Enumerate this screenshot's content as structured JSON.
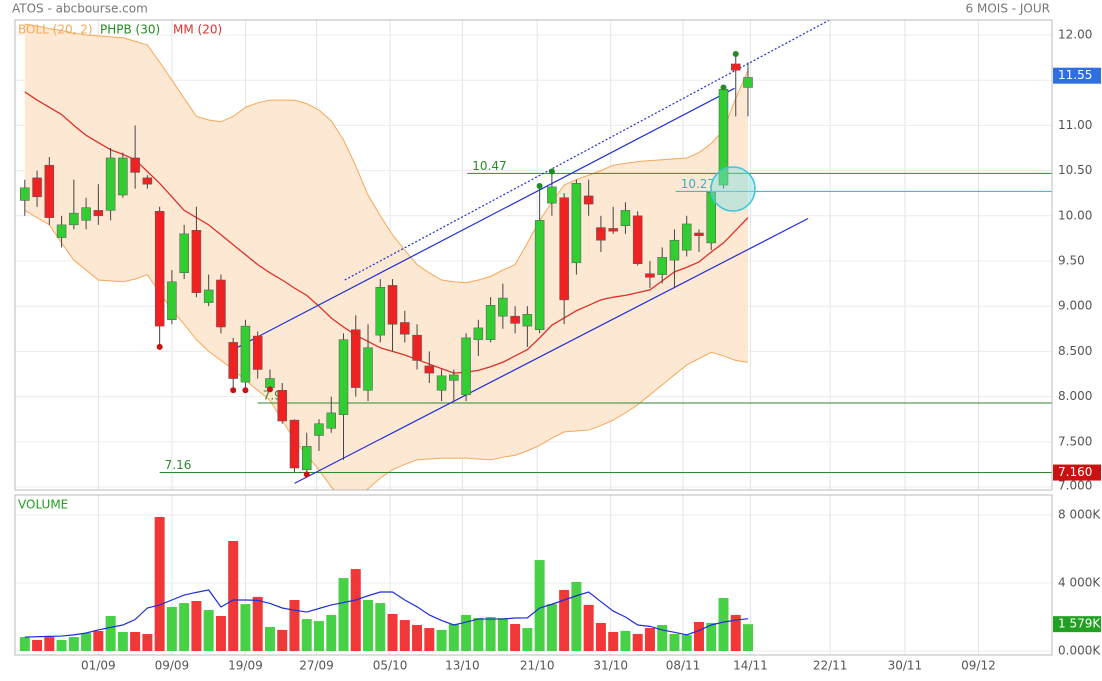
{
  "chart_data": [
    {
      "type": "candlestick",
      "title": "ATOS - abcbourse.com",
      "subtitle": "6 MOIS - JOUR",
      "up_color": "#33cc33",
      "down_color": "#ee2222",
      "open": [
        10.17,
        10.42,
        10.56,
        9.76,
        9.9,
        9.95,
        10.06,
        10.06,
        10.23,
        10.64,
        10.42,
        10.05,
        8.85,
        9.37,
        9.84,
        9.04,
        9.29,
        8.6,
        8.16,
        8.67,
        8.1,
        8.07,
        7.74,
        7.19,
        7.57,
        7.65,
        7.8,
        8.74,
        8.07,
        8.68,
        9.23,
        8.82,
        8.68,
        8.34,
        8.07,
        8.18,
        8.02,
        8.63,
        8.63,
        8.89,
        8.89,
        8.78,
        8.74,
        10.14,
        10.2,
        9.48,
        10.22,
        9.87,
        9.86,
        9.89,
        10.0,
        9.36,
        9.35,
        9.51,
        9.62,
        9.81,
        9.7,
        10.34,
        11.68,
        11.42
      ],
      "high": [
        10.4,
        10.5,
        10.65,
        10.0,
        10.4,
        10.2,
        10.35,
        10.75,
        10.7,
        11.0,
        10.45,
        10.1,
        9.4,
        9.9,
        10.1,
        9.35,
        9.35,
        8.65,
        8.85,
        8.72,
        8.3,
        8.15,
        7.75,
        7.6,
        7.75,
        8.0,
        8.7,
        8.9,
        8.8,
        9.3,
        9.3,
        8.95,
        8.8,
        8.5,
        8.3,
        8.3,
        8.7,
        8.85,
        9.1,
        9.25,
        9.0,
        9.0,
        10.3,
        10.47,
        10.25,
        10.4,
        10.4,
        10.0,
        10.1,
        10.15,
        10.05,
        9.5,
        9.65,
        9.85,
        10.0,
        9.85,
        10.3,
        11.45,
        11.76,
        11.7
      ],
      "low": [
        10.0,
        10.1,
        9.9,
        9.65,
        9.85,
        9.85,
        9.9,
        9.95,
        10.2,
        10.3,
        10.3,
        8.57,
        8.8,
        9.3,
        9.1,
        9.0,
        8.7,
        8.1,
        8.1,
        8.2,
        8.05,
        7.7,
        7.16,
        7.16,
        7.4,
        7.6,
        7.3,
        8.0,
        7.95,
        8.6,
        8.5,
        8.6,
        8.3,
        8.15,
        7.95,
        7.95,
        7.95,
        8.45,
        8.6,
        8.75,
        8.7,
        8.55,
        8.7,
        10.0,
        8.8,
        9.35,
        10.0,
        9.6,
        9.8,
        9.8,
        9.45,
        9.2,
        9.25,
        9.2,
        9.55,
        9.6,
        9.62,
        10.3,
        11.1,
        11.1
      ],
      "close": [
        10.31,
        10.21,
        9.98,
        9.9,
        10.03,
        10.09,
        10.0,
        10.64,
        10.64,
        10.48,
        10.35,
        8.78,
        9.27,
        9.8,
        9.15,
        9.18,
        8.77,
        8.2,
        8.78,
        8.3,
        8.2,
        7.73,
        7.21,
        7.45,
        7.7,
        7.82,
        8.63,
        8.1,
        8.54,
        9.21,
        8.8,
        8.69,
        8.4,
        8.26,
        8.23,
        8.24,
        8.65,
        8.76,
        9.01,
        9.09,
        8.81,
        8.91,
        9.95,
        10.32,
        9.07,
        10.36,
        10.13,
        9.73,
        9.83,
        10.06,
        9.47,
        9.32,
        9.54,
        9.73,
        9.91,
        9.78,
        10.26,
        11.4,
        11.61,
        11.53
      ],
      "bands": {
        "name": "BOLL (20, 2)",
        "color": "#f5a858",
        "fill": "#fde8d3",
        "upper": [
          12.12,
          12.1,
          12.07,
          12.05,
          12.02,
          12.0,
          11.99,
          11.98,
          11.97,
          11.93,
          11.89,
          11.7,
          11.5,
          11.3,
          11.1,
          11.06,
          11.04,
          11.1,
          11.2,
          11.25,
          11.28,
          11.28,
          11.28,
          11.24,
          11.17,
          11.05,
          10.84,
          10.55,
          10.23,
          10.0,
          9.79,
          9.62,
          9.46,
          9.37,
          9.29,
          9.27,
          9.26,
          9.29,
          9.33,
          9.4,
          9.46,
          9.7,
          9.95,
          10.15,
          10.34,
          10.4,
          10.45,
          10.5,
          10.56,
          10.58,
          10.6,
          10.61,
          10.62,
          10.63,
          10.64,
          10.7,
          10.8,
          10.95,
          11.3,
          11.61
        ],
        "lower": [
          10.06,
          9.98,
          9.9,
          9.7,
          9.51,
          9.4,
          9.29,
          9.28,
          9.27,
          9.3,
          9.35,
          9.15,
          8.96,
          8.8,
          8.63,
          8.5,
          8.4,
          8.3,
          8.18,
          8.07,
          7.96,
          7.74,
          7.52,
          7.35,
          7.19,
          7.0,
          6.86,
          6.92,
          6.98,
          7.1,
          7.19,
          7.25,
          7.3,
          7.31,
          7.32,
          7.32,
          7.32,
          7.31,
          7.3,
          7.33,
          7.35,
          7.4,
          7.46,
          7.54,
          7.61,
          7.62,
          7.63,
          7.68,
          7.74,
          7.82,
          7.91,
          8.02,
          8.13,
          8.24,
          8.35,
          8.42,
          8.49,
          8.45,
          8.4,
          8.38
        ]
      },
      "markers": {
        "name": "PHPB (30)",
        "color": "#228b22",
        "low_color": "#cc1111",
        "highs": {
          "x": [
            42,
            43,
            57,
            58
          ],
          "y": [
            10.33,
            10.49,
            11.42,
            11.79
          ]
        },
        "lows": {
          "x": [
            11,
            17,
            18,
            20,
            23
          ],
          "y": [
            8.55,
            8.07,
            8.07,
            8.08,
            7.14
          ]
        }
      },
      "series": [
        {
          "name": "MM (20)",
          "color": "#e0302a",
          "values": [
            11.37,
            11.28,
            11.2,
            11.12,
            11.0,
            10.89,
            10.81,
            10.73,
            10.68,
            10.62,
            10.49,
            10.36,
            10.21,
            10.06,
            9.98,
            9.9,
            9.79,
            9.68,
            9.57,
            9.46,
            9.37,
            9.29,
            9.2,
            9.12,
            9.0,
            8.87,
            8.77,
            8.68,
            8.61,
            8.54,
            8.5,
            8.46,
            8.41,
            8.36,
            8.31,
            8.26,
            8.27,
            8.29,
            8.33,
            8.38,
            8.45,
            8.52,
            8.65,
            8.79,
            8.87,
            8.95,
            9.01,
            9.07,
            9.1,
            9.12,
            9.15,
            9.18,
            9.28,
            9.38,
            9.43,
            9.49,
            9.6,
            9.7,
            9.84,
            9.98
          ]
        }
      ],
      "trendlines": [
        {
          "x": [
            17,
            57.9
          ],
          "y": [
            8.52,
            11.41
          ],
          "color": "#1f2fd6"
        },
        {
          "x": [
            22,
            63.9
          ],
          "y": [
            7.04,
            9.97
          ],
          "color": "#1f2fd6"
        },
        {
          "x": [
            26.1,
            65.7
          ],
          "y": [
            9.29,
            12.17
          ],
          "color": "#1f2fd6",
          "dashed": true
        }
      ],
      "levels": [
        {
          "y": 10.47,
          "x": 36.1,
          "color": "#2d8a2d"
        },
        {
          "y": 10.27,
          "x": 53.1,
          "color": "#2ab5c8"
        },
        {
          "y": 7.93,
          "label": "7.9",
          "x": 19,
          "color": "#2d8a2d"
        },
        {
          "y": 7.16,
          "x": 11,
          "color": "#2d8a2d"
        }
      ],
      "last_tags": [
        {
          "value": 11.55,
          "color": "#2f6fe0"
        },
        {
          "value": 7.16,
          "label": "7.160",
          "color": "#cc1111"
        }
      ],
      "xlim": [
        -0.8,
        83.8
      ],
      "xticks": [
        {
          "value": 6,
          "label": "01/09"
        },
        {
          "value": 12,
          "label": "09/09"
        },
        {
          "value": 18,
          "label": "19/09"
        },
        {
          "value": 23.8,
          "label": "27/09"
        },
        {
          "value": 29.8,
          "label": "05/10"
        },
        {
          "value": 35.7,
          "label": "13/10"
        },
        {
          "value": 41.8,
          "label": "21/10"
        },
        {
          "value": 47.8,
          "label": "31/10"
        },
        {
          "value": 53.7,
          "label": "08/11"
        },
        {
          "value": 59.2,
          "label": "14/11"
        },
        {
          "value": 65.7,
          "label": "22/11"
        },
        {
          "value": 71.8,
          "label": "30/11"
        },
        {
          "value": 77.8,
          "label": "09/12"
        }
      ],
      "ylim": [
        6.967,
        12.166
      ],
      "yticks": [
        {
          "value": 7,
          "label": "7.000"
        },
        {
          "value": 7.5,
          "label": "7.500"
        },
        {
          "value": 8,
          "label": "8.000"
        },
        {
          "value": 8.5,
          "label": "8.500"
        },
        {
          "value": 9,
          "label": "9.000"
        },
        {
          "value": 9.5,
          "label": "9.50"
        },
        {
          "value": 10,
          "label": "10.00"
        },
        {
          "value": 10.5,
          "label": "10.50"
        },
        {
          "value": 11,
          "label": "11.00"
        },
        {
          "value": 11.5,
          "label": "11.50"
        },
        {
          "value": 12,
          "label": "12.00"
        }
      ],
      "grid": true
    },
    {
      "type": "bar",
      "title": "VOLUME",
      "values": [
        820,
        650,
        820,
        650,
        820,
        1060,
        1180,
        2060,
        1120,
        1120,
        1000,
        7880,
        2590,
        2820,
        2940,
        2410,
        2060,
        6470,
        2760,
        3180,
        1410,
        1240,
        3000,
        1880,
        1760,
        2120,
        4290,
        4820,
        3000,
        2820,
        2180,
        1820,
        1530,
        1350,
        1240,
        1590,
        2120,
        1940,
        2000,
        1940,
        1590,
        1350,
        5350,
        2760,
        3590,
        4060,
        2710,
        1650,
        1120,
        1180,
        1000,
        1350,
        1530,
        1000,
        940,
        1710,
        1650,
        3120,
        2120,
        1579
      ],
      "ma": {
        "color": "#1f2fd6",
        "values": [
          820,
          840,
          860,
          880,
          950,
          1060,
          1240,
          1390,
          1530,
          1850,
          2530,
          2710,
          3000,
          3290,
          3450,
          3590,
          2590,
          3000,
          3000,
          2980,
          2800,
          2530,
          2400,
          2290,
          2500,
          2710,
          2850,
          3000,
          3250,
          3470,
          3470,
          3000,
          2600,
          2120,
          1800,
          1530,
          1700,
          1880,
          1880,
          1880,
          1940,
          1950,
          2530,
          2750,
          3000,
          3250,
          3470,
          2900,
          2350,
          2000,
          1530,
          1450,
          1240,
          1100,
          950,
          1200,
          1530,
          1700,
          1820,
          1900
        ]
      },
      "last_tag": {
        "value": 1579,
        "label": "1 579K",
        "color": "#22a022"
      },
      "ylim": [
        -235,
        9176
      ],
      "yticks": [
        {
          "value": 0,
          "label": "0.000K"
        },
        {
          "value": 4000,
          "label": "4 000K"
        },
        {
          "value": 8000,
          "label": "8 000K"
        }
      ],
      "grid": true
    }
  ]
}
